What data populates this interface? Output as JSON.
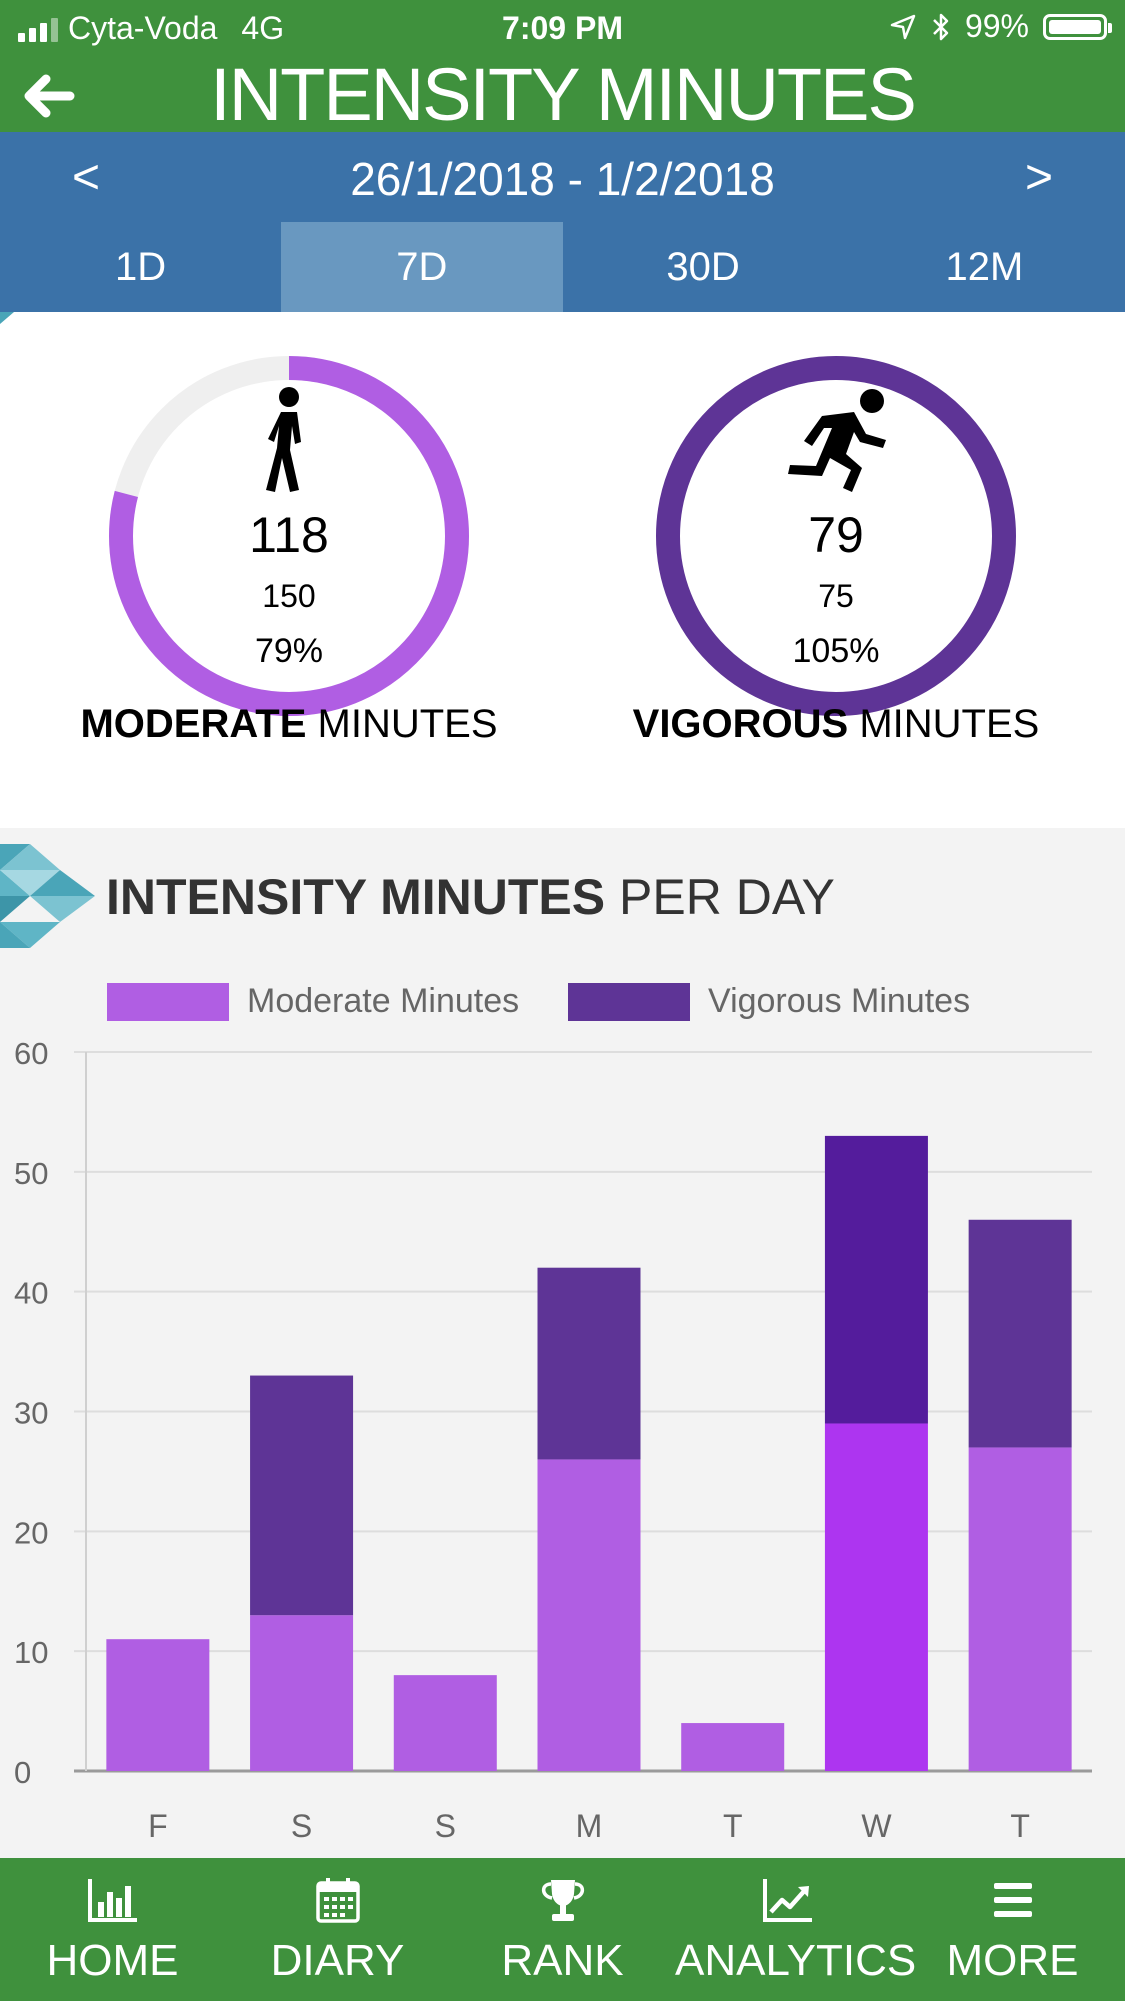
{
  "status_bar": {
    "carrier": "Cyta-Voda",
    "network": "4G",
    "time": "7:09 PM",
    "battery": "99%"
  },
  "header": {
    "title": "INTENSITY MINUTES"
  },
  "date_nav": {
    "prev": "<",
    "range": "26/1/2018 - 1/2/2018",
    "next": ">"
  },
  "tabs": [
    {
      "label": "1D",
      "active": false
    },
    {
      "label": "7D",
      "active": true
    },
    {
      "label": "30D",
      "active": false
    },
    {
      "label": "12M",
      "active": false
    }
  ],
  "moderate": {
    "value": "118",
    "goal": "150",
    "percent": "79%",
    "caption_bold": "MODERATE",
    "caption_rest": " MINUTES",
    "progress": 0.79,
    "color": "#b05ee3"
  },
  "vigorous": {
    "value": "79",
    "goal": "75",
    "percent": "105%",
    "caption_bold": "VIGOROUS",
    "caption_rest": " MINUTES",
    "progress": 1.0,
    "color": "#5e3496"
  },
  "chart_section": {
    "title_bold": "INTENSITY MINUTES",
    "title_rest": " PER DAY"
  },
  "chart_data": {
    "type": "bar",
    "stacked": true,
    "categories": [
      "F",
      "S",
      "S",
      "M",
      "T",
      "W",
      "T"
    ],
    "series": [
      {
        "name": "Moderate Minutes",
        "values": [
          11,
          13,
          8,
          26,
          4,
          29,
          27
        ],
        "color": "#b05ee3"
      },
      {
        "name": "Vigorous Minutes",
        "values": [
          0,
          20,
          0,
          16,
          0,
          24,
          19
        ],
        "color": "#5e3496"
      }
    ],
    "highlight_index": 5,
    "highlight_colors": [
      "#ad35f0",
      "#541c9c"
    ],
    "yticks": [
      0,
      10,
      20,
      30,
      40,
      50,
      60
    ],
    "ylim": [
      0,
      60
    ],
    "grid": true,
    "legend": "top"
  },
  "bottom_nav": [
    {
      "label": "HOME",
      "icon": "bar-chart-icon"
    },
    {
      "label": "DIARY",
      "icon": "calendar-icon"
    },
    {
      "label": "RANK",
      "icon": "trophy-icon"
    },
    {
      "label": "ANALYTICS",
      "icon": "trend-icon"
    },
    {
      "label": "MORE",
      "icon": "menu-icon"
    }
  ],
  "colors": {
    "green": "#3f913d",
    "blue": "#3b72a8",
    "active_tab": "#6998c0",
    "teal": "#4aa5b8"
  }
}
